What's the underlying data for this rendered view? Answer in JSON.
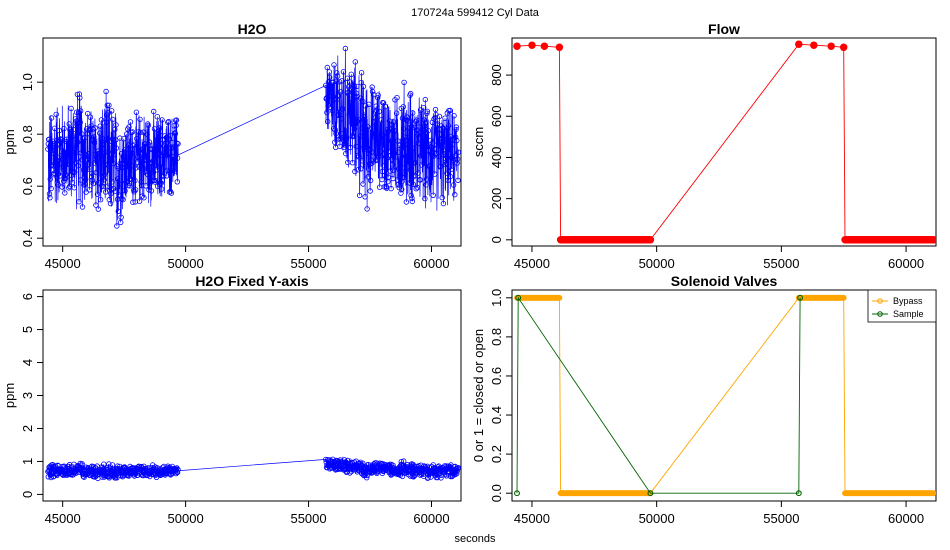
{
  "figure": {
    "suptitle": "170724a   599412   Cyl Data",
    "xlabel": "seconds"
  },
  "colors": {
    "h2o": "#0000ff",
    "flow": "#ff0000",
    "bypass": "#ffa500",
    "sample": "#006400",
    "frame": "#000000"
  },
  "chart_data": [
    {
      "id": "h2o",
      "type": "line",
      "title": "H2O",
      "xlabel": "",
      "ylabel": "ppm",
      "xlim": [
        44200,
        61200
      ],
      "ylim": [
        0.37,
        1.17
      ],
      "xticks": [
        45000,
        50000,
        55000,
        60000
      ],
      "yticks": [
        0.4,
        0.6,
        0.8,
        1.0
      ],
      "ytick_labels": [
        "0.4",
        "0.6",
        "0.8",
        "1.0"
      ],
      "grid": false,
      "marker": "open-circle",
      "series": [
        {
          "color": "#0000ff",
          "x": [
            44400,
            44800,
            45200,
            45600,
            46000,
            46400,
            46800,
            47200,
            47600,
            48000,
            48400,
            48800,
            49200,
            49700,
            55700,
            56100,
            56500,
            56900,
            57300,
            57700,
            58100,
            58500,
            58900,
            59300,
            59700,
            60100,
            60500,
            60900,
            61100
          ],
          "y": [
            0.7,
            0.73,
            0.69,
            0.76,
            0.72,
            0.7,
            0.68,
            0.66,
            0.7,
            0.69,
            0.71,
            0.7,
            0.72,
            0.72,
            0.97,
            0.85,
            0.84,
            0.88,
            0.8,
            0.78,
            0.77,
            0.76,
            0.74,
            0.73,
            0.75,
            0.72,
            0.74,
            0.73,
            0.74
          ],
          "y_min": [
            0.44,
            0.5,
            0.55,
            0.48,
            0.5,
            0.45,
            0.5,
            0.38,
            0.52,
            0.5,
            0.52,
            0.48,
            0.55,
            0.55,
            0.78,
            0.7,
            0.65,
            0.58,
            0.45,
            0.6,
            0.55,
            0.55,
            0.5,
            0.52,
            0.48,
            0.47,
            0.5,
            0.5,
            0.55
          ],
          "y_max": [
            0.9,
            0.96,
            0.95,
            1.0,
            0.93,
            0.92,
            0.98,
            0.92,
            0.88,
            0.9,
            0.92,
            0.9,
            0.9,
            0.88,
            1.1,
            1.12,
            1.16,
            1.1,
            1.05,
            1.0,
            1.0,
            0.95,
            1.04,
            0.98,
            0.95,
            0.93,
            0.9,
            0.92,
            0.88
          ]
        }
      ]
    },
    {
      "id": "flow",
      "type": "line",
      "title": "Flow",
      "xlabel": "",
      "ylabel": "sccm",
      "xlim": [
        44200,
        61200
      ],
      "ylim": [
        -30,
        980
      ],
      "xticks": [
        45000,
        50000,
        55000,
        60000
      ],
      "yticks": [
        0,
        200,
        400,
        600,
        800
      ],
      "ytick_labels": [
        "0",
        "200",
        "400",
        "600",
        "800"
      ],
      "grid": false,
      "marker": "filled-circle",
      "series": [
        {
          "color": "#ff0000",
          "x": [
            44400,
            45000,
            45500,
            46100,
            46150,
            47000,
            48000,
            49000,
            49750,
            55700,
            56300,
            57000,
            57500,
            57550,
            58500,
            59500,
            60500,
            61100
          ],
          "y": [
            940,
            945,
            940,
            935,
            0,
            0,
            0,
            0,
            0,
            950,
            945,
            940,
            935,
            0,
            0,
            0,
            0,
            0
          ]
        }
      ]
    },
    {
      "id": "h2o-fixed",
      "type": "line",
      "title": "H2O Fixed Y-axis",
      "xlabel": "",
      "ylabel": "ppm",
      "xlim": [
        44200,
        61200
      ],
      "ylim": [
        -0.2,
        6.2
      ],
      "xticks": [
        45000,
        50000,
        55000,
        60000
      ],
      "yticks": [
        0,
        1,
        2,
        3,
        4,
        5,
        6
      ],
      "ytick_labels": [
        "0",
        "1",
        "2",
        "3",
        "4",
        "5",
        "6"
      ],
      "grid": false,
      "marker": "open-circle",
      "series": [
        {
          "color": "#0000ff",
          "x": [
            44400,
            44800,
            45200,
            45600,
            46000,
            46400,
            46800,
            47200,
            47600,
            48000,
            48400,
            48800,
            49200,
            49700,
            55700,
            56100,
            56500,
            56900,
            57300,
            57700,
            58100,
            58500,
            58900,
            59300,
            59700,
            60100,
            60500,
            60900,
            61100
          ],
          "y": [
            0.7,
            0.73,
            0.69,
            0.76,
            0.72,
            0.7,
            0.68,
            0.66,
            0.7,
            0.69,
            0.71,
            0.7,
            0.72,
            0.72,
            0.97,
            0.85,
            0.84,
            0.88,
            0.8,
            0.78,
            0.77,
            0.76,
            0.74,
            0.73,
            0.75,
            0.72,
            0.74,
            0.73,
            0.74
          ],
          "y_min": [
            0.44,
            0.5,
            0.55,
            0.48,
            0.5,
            0.45,
            0.5,
            0.38,
            0.52,
            0.5,
            0.52,
            0.48,
            0.55,
            0.55,
            0.78,
            0.7,
            0.65,
            0.58,
            0.45,
            0.6,
            0.55,
            0.55,
            0.5,
            0.52,
            0.48,
            0.47,
            0.5,
            0.5,
            0.55
          ],
          "y_max": [
            0.9,
            0.96,
            0.95,
            1.0,
            0.93,
            0.92,
            0.98,
            0.92,
            0.88,
            0.9,
            0.92,
            0.9,
            0.9,
            0.88,
            1.1,
            1.12,
            1.16,
            1.1,
            1.05,
            1.0,
            1.0,
            0.95,
            1.04,
            0.98,
            0.95,
            0.93,
            0.9,
            0.92,
            0.88
          ]
        }
      ]
    },
    {
      "id": "valves",
      "type": "line",
      "title": "Solenoid Valves",
      "xlabel": "",
      "ylabel": "0 or 1 = closed or open",
      "xlim": [
        44200,
        61200
      ],
      "ylim": [
        -0.04,
        1.04
      ],
      "xticks": [
        45000,
        50000,
        55000,
        60000
      ],
      "yticks": [
        0,
        0.2,
        0.4,
        0.6,
        0.8,
        1.0
      ],
      "ytick_labels": [
        "0.0",
        "0.2",
        "0.4",
        "0.6",
        "0.8",
        "1.0"
      ],
      "grid": false,
      "legend": "top-right",
      "series": [
        {
          "name": "Bypass",
          "color": "#ffa500",
          "marker": "open-circle",
          "x": [
            44400,
            45000,
            45500,
            46100,
            46150,
            47000,
            48000,
            49000,
            49750,
            55700,
            56300,
            57000,
            57500,
            57550,
            58500,
            59500,
            60500,
            61100
          ],
          "y": [
            1,
            1,
            1,
            1,
            0,
            0,
            0,
            0,
            0,
            1,
            1,
            1,
            1,
            0,
            0,
            0,
            0,
            0
          ]
        },
        {
          "name": "Sample",
          "color": "#006400",
          "marker": "open-circle",
          "x": [
            44400,
            44450,
            49750,
            55700,
            55750
          ],
          "y": [
            0,
            1,
            0,
            0,
            1
          ]
        }
      ]
    }
  ]
}
